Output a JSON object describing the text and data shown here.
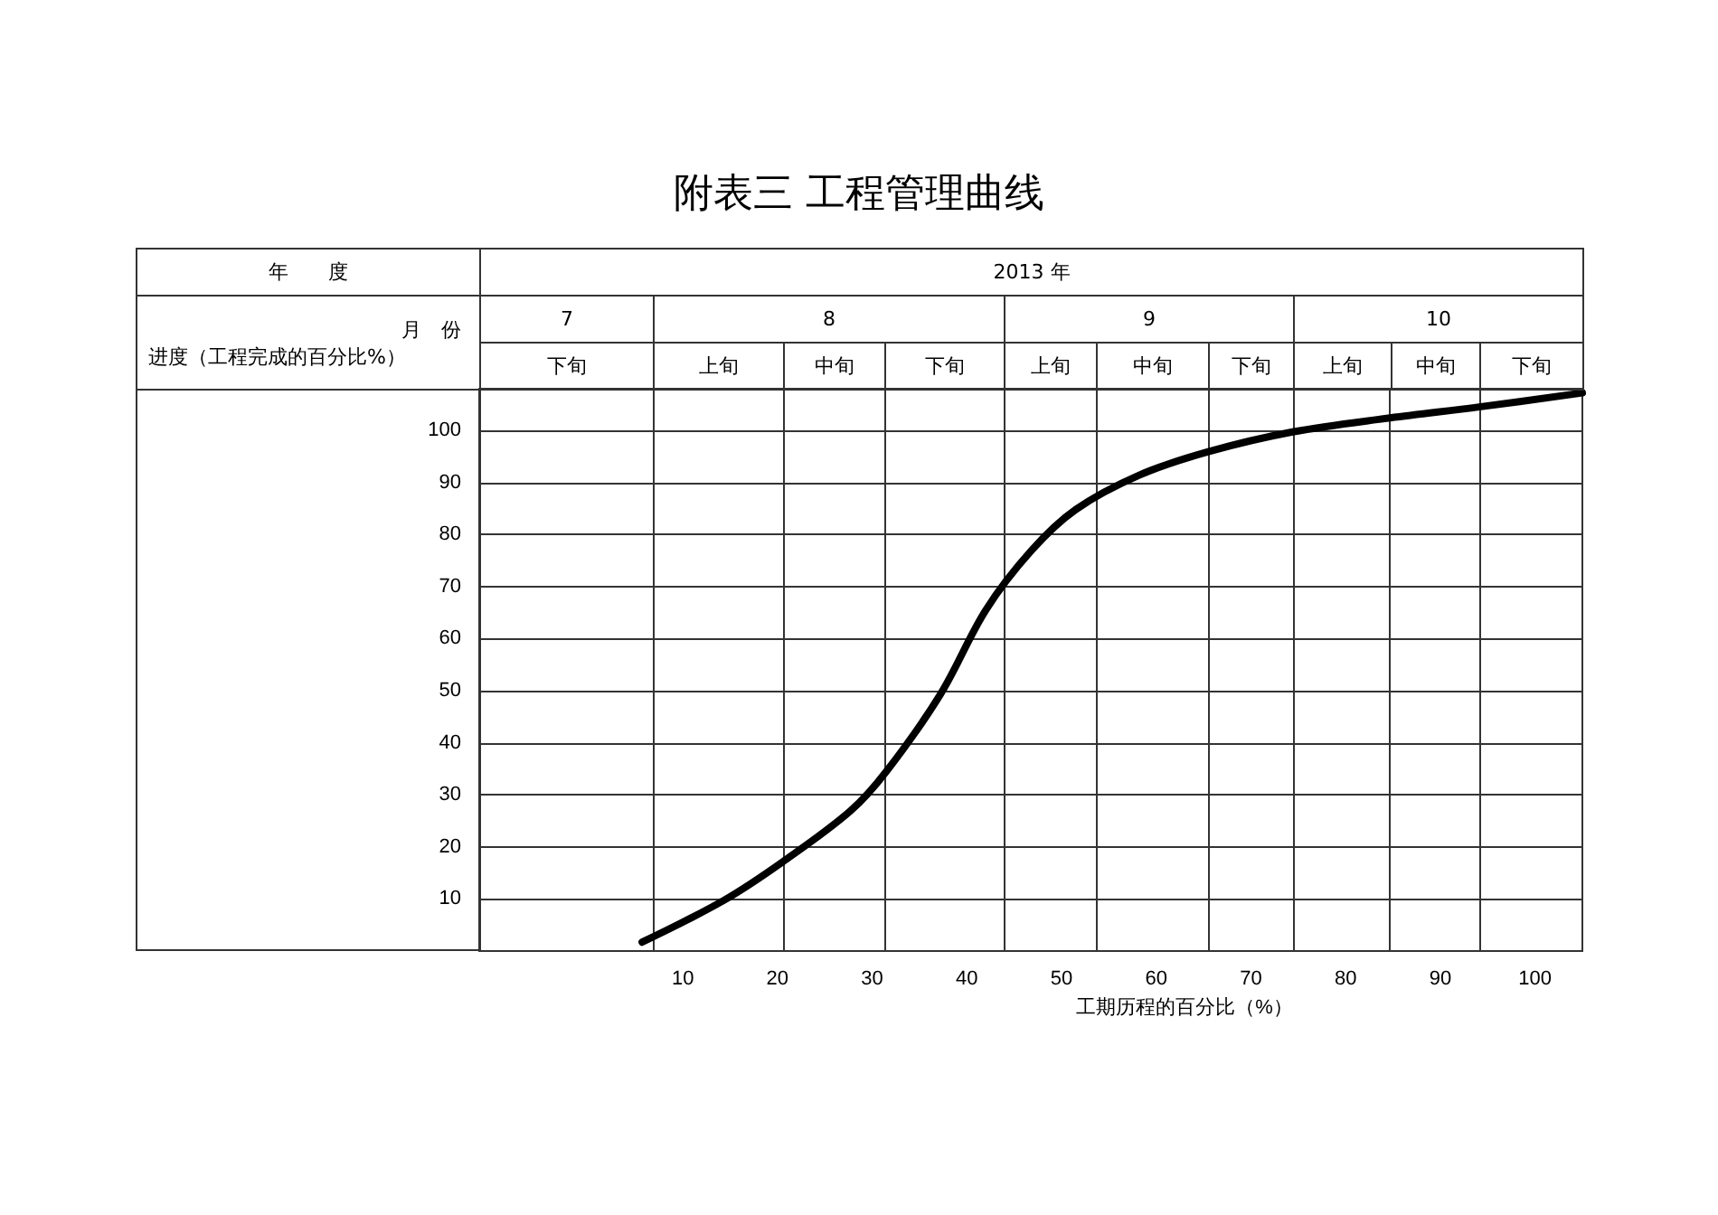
{
  "chart_data": {
    "type": "line",
    "title": "附表三  工程管理曲线",
    "xlabel": "工期历程的百分比（%）",
    "ylabel": "进度（工程完成的百分比%）",
    "annotations": [
      "年　　度",
      "2013 年",
      "月　份",
      "7",
      "8",
      "9",
      "10",
      "下旬",
      "上旬",
      "中旬",
      "下旬",
      "上旬",
      "中旬",
      "下旬",
      "上旬",
      "中旬",
      "下旬"
    ],
    "series": [
      {
        "color": "#000000",
        "x": [
          5.7,
          14.3,
          20.6,
          27.7,
          31.5,
          37.2,
          42,
          46.8,
          51.5,
          58.2,
          65.5,
          74.4,
          84.7,
          94.1,
          105
        ],
        "values": [
          1.7,
          9.7,
          17.2,
          26.9,
          34.5,
          49.3,
          65.5,
          76.9,
          84.8,
          91.4,
          95.9,
          99.7,
          102.4,
          104.5,
          107.2
        ]
      }
    ],
    "xlim": [
      -11.5,
      105
    ],
    "xticks": [
      10,
      20,
      30,
      40,
      50,
      60,
      70,
      80,
      90,
      100
    ],
    "ylim": [
      0,
      108
    ],
    "yticks": [
      10,
      20,
      30,
      40,
      50,
      60,
      70,
      80,
      90,
      100
    ],
    "ref_lines": [
      {
        "axis": "x",
        "value": 6.9,
        "color": "#333333"
      },
      {
        "axis": "x",
        "value": 20.6,
        "color": "#333333"
      },
      {
        "axis": "x",
        "value": 31.3,
        "color": "#333333"
      },
      {
        "axis": "x",
        "value": 43.9,
        "color": "#333333"
      },
      {
        "axis": "x",
        "value": 53.6,
        "color": "#333333"
      },
      {
        "axis": "x",
        "value": 65.5,
        "color": "#333333"
      },
      {
        "axis": "x",
        "value": 74.4,
        "color": "#333333"
      },
      {
        "axis": "x",
        "value": 84.7,
        "color": "#333333"
      },
      {
        "axis": "x",
        "value": 94.1,
        "color": "#333333"
      }
    ],
    "grid": "y"
  }
}
